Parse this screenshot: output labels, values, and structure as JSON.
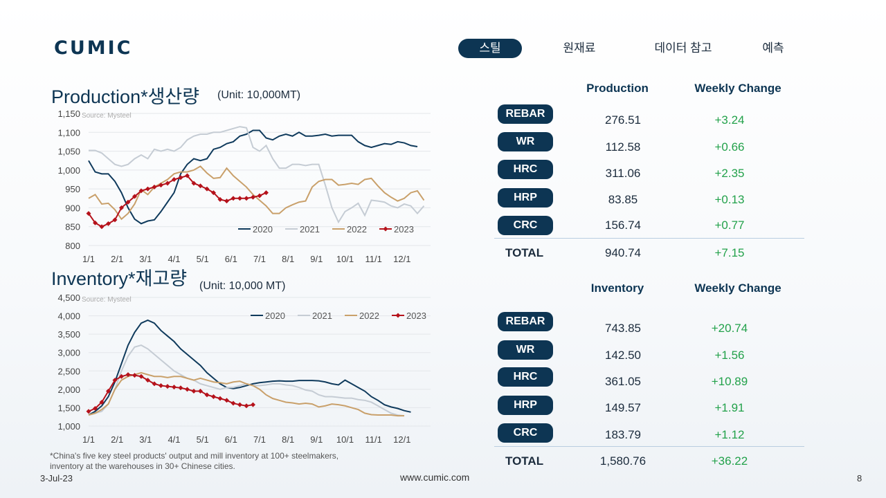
{
  "brand": "CUMIC",
  "nav": [
    "스틸",
    "원재료",
    "데이터 참고",
    "예측"
  ],
  "colors": {
    "navy": "#0d3553",
    "s2020": "#0f3a5c",
    "s2021": "#c5ccd4",
    "s2022": "#c9a06a",
    "s2023": "#b5121b",
    "green": "#22a14a"
  },
  "production": {
    "title": "Production*생산량",
    "unit": "(Unit: 10,000MT)",
    "source": "Source: Mysteel",
    "col1": "Production",
    "col2": "Weekly Change",
    "rows": [
      {
        "label": "REBAR",
        "value": "276.51",
        "change": "+3.24"
      },
      {
        "label": "WR",
        "value": "112.58",
        "change": "+0.66"
      },
      {
        "label": "HRC",
        "value": "311.06",
        "change": "+2.35"
      },
      {
        "label": "HRP",
        "value": "83.85",
        "change": "+0.13"
      },
      {
        "label": "CRC",
        "value": "156.74",
        "change": "+0.77"
      }
    ],
    "total_label": "TOTAL",
    "total_value": "940.74",
    "total_change": "+7.15"
  },
  "inventory": {
    "title": "Inventory*재고량",
    "unit": "(Unit: 10,000 MT)",
    "source": "Source: Mysteel",
    "col1": "Inventory",
    "col2": "Weekly Change",
    "rows": [
      {
        "label": "REBAR",
        "value": "743.85",
        "change": "+20.74"
      },
      {
        "label": "WR",
        "value": "142.50",
        "change": "+1.56"
      },
      {
        "label": "HRC",
        "value": "361.05",
        "change": "+10.89"
      },
      {
        "label": "HRP",
        "value": "149.57",
        "change": "+1.91"
      },
      {
        "label": "CRC",
        "value": "183.79",
        "change": "+1.12"
      }
    ],
    "total_label": "TOTAL",
    "total_value": "1,580.76",
    "total_change": "+36.22"
  },
  "footnote_line1": "*China's five key steel products' output and mill inventory at 100+ steelmakers,",
  "footnote_line2": "inventory at the warehouses in 30+ Chinese cities.",
  "date": "3-Jul-23",
  "website": "www.cumic.com",
  "page_number": "8",
  "chart_data": [
    {
      "type": "line",
      "title": "Production*생산량",
      "ylim": [
        800,
        1150
      ],
      "yticks": [
        "800",
        "850",
        "900",
        "950",
        "1,000",
        "1,050",
        "1,100",
        "1,150"
      ],
      "xticks": [
        "1/1",
        "2/1",
        "3/1",
        "4/1",
        "5/1",
        "6/1",
        "7/1",
        "8/1",
        "9/1",
        "10/1",
        "11/1",
        "12/1"
      ],
      "legend": "bottom-right",
      "series": [
        {
          "name": "2020",
          "values": [
            1025,
            995,
            990,
            990,
            970,
            940,
            900,
            870,
            858,
            865,
            868,
            890,
            915,
            940,
            990,
            1015,
            1030,
            1025,
            1030,
            1055,
            1060,
            1070,
            1075,
            1090,
            1095,
            1105,
            1105,
            1085,
            1080,
            1090,
            1095,
            1090,
            1100,
            1090,
            1090,
            1092,
            1095,
            1090,
            1092,
            1092,
            1092,
            1075,
            1065,
            1060,
            1065,
            1070,
            1068,
            1075,
            1072,
            1065,
            1062
          ]
        },
        {
          "name": "2021",
          "values": [
            1052,
            1052,
            1045,
            1030,
            1015,
            1010,
            1015,
            1030,
            1040,
            1030,
            1055,
            1050,
            1055,
            1050,
            1060,
            1080,
            1090,
            1095,
            1095,
            1100,
            1100,
            1105,
            1110,
            1115,
            1112,
            1060,
            1050,
            1065,
            1030,
            1005,
            1005,
            1015,
            1015,
            1012,
            1015,
            1015,
            960,
            900,
            862,
            890,
            900,
            912,
            880,
            920,
            918,
            915,
            905,
            900,
            910,
            905,
            885,
            905
          ]
        },
        {
          "name": "2022",
          "values": [
            925,
            935,
            910,
            912,
            895,
            870,
            885,
            910,
            948,
            935,
            955,
            965,
            975,
            990,
            995,
            995,
            1000,
            1010,
            992,
            978,
            980,
            1005,
            985,
            970,
            955,
            935,
            920,
            905,
            885,
            885,
            900,
            908,
            915,
            918,
            955,
            970,
            975,
            975,
            960,
            962,
            965,
            962,
            975,
            978,
            958,
            940,
            928,
            918,
            925,
            940,
            945,
            920
          ]
        },
        {
          "name": "2023",
          "values": [
            885,
            860,
            850,
            858,
            868,
            900,
            915,
            930,
            945,
            950,
            955,
            960,
            965,
            975,
            980,
            985,
            965,
            958,
            950,
            940,
            922,
            918,
            925,
            925,
            925,
            928,
            932,
            940
          ]
        }
      ]
    },
    {
      "type": "line",
      "title": "Inventory*재고량",
      "ylim": [
        1000,
        4500
      ],
      "yticks": [
        "1,000",
        "1,500",
        "2,000",
        "2,500",
        "3,000",
        "3,500",
        "4,000",
        "4,500"
      ],
      "xticks": [
        "1/1",
        "2/1",
        "3/1",
        "4/1",
        "5/1",
        "6/1",
        "7/1",
        "8/1",
        "9/1",
        "10/1",
        "11/1",
        "12/1"
      ],
      "legend": "top-right",
      "series": [
        {
          "name": "2020",
          "values": [
            1300,
            1400,
            1550,
            1800,
            2200,
            2700,
            3200,
            3550,
            3800,
            3880,
            3800,
            3600,
            3450,
            3300,
            3100,
            2950,
            2800,
            2650,
            2450,
            2300,
            2150,
            2050,
            2020,
            2050,
            2100,
            2150,
            2180,
            2200,
            2220,
            2230,
            2220,
            2220,
            2240,
            2240,
            2240,
            2230,
            2200,
            2150,
            2120,
            2250,
            2150,
            2050,
            1950,
            1800,
            1700,
            1580,
            1520,
            1480,
            1420,
            1380
          ]
        },
        {
          "name": "2021",
          "values": [
            1300,
            1350,
            1400,
            1600,
            2000,
            2500,
            2900,
            3150,
            3200,
            3100,
            2950,
            2800,
            2650,
            2500,
            2400,
            2300,
            2250,
            2150,
            2100,
            2050,
            2000,
            2050,
            2050,
            2100,
            2150,
            2100,
            2100,
            2120,
            2150,
            2150,
            2120,
            2100,
            2050,
            1980,
            1950,
            1850,
            1800,
            1800,
            1780,
            1760,
            1760,
            1720,
            1700,
            1650,
            1550,
            1450,
            1350,
            1300,
            1280
          ]
        },
        {
          "name": "2022",
          "values": [
            1300,
            1350,
            1450,
            1600,
            2000,
            2250,
            2350,
            2400,
            2450,
            2400,
            2350,
            2350,
            2320,
            2350,
            2350,
            2300,
            2250,
            2300,
            2250,
            2200,
            2180,
            2150,
            2200,
            2220,
            2150,
            2100,
            2000,
            1850,
            1750,
            1700,
            1650,
            1630,
            1600,
            1620,
            1600,
            1520,
            1550,
            1600,
            1580,
            1550,
            1500,
            1450,
            1350,
            1310,
            1300,
            1300,
            1300,
            1280,
            1280
          ]
        },
        {
          "name": "2023",
          "values": [
            1400,
            1480,
            1650,
            1950,
            2250,
            2350,
            2400,
            2380,
            2350,
            2250,
            2150,
            2100,
            2080,
            2060,
            2040,
            2000,
            1950,
            1950,
            1850,
            1800,
            1750,
            1700,
            1620,
            1580,
            1550,
            1580
          ]
        }
      ]
    }
  ]
}
